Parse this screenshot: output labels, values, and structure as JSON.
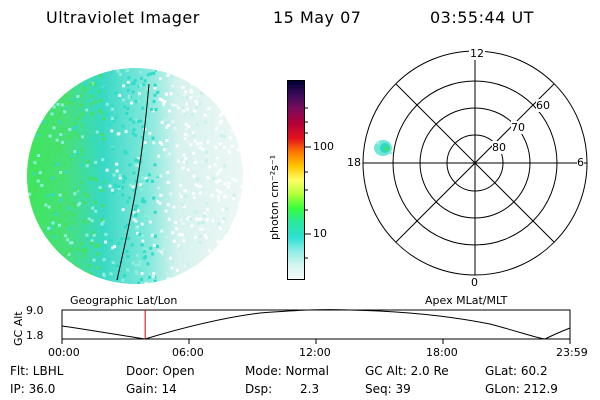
{
  "header": {
    "instrument": "Ultraviolet Imager",
    "date": "15 May 07",
    "time": "03:55:44 UT"
  },
  "colorbar": {
    "unit_label": "photon cm⁻²s⁻¹",
    "tick_100": "100",
    "tick_10": "10",
    "colors": [
      "#000033",
      "#3b0a5a",
      "#7a0c5c",
      "#b0003a",
      "#e2121e",
      "#ff7a00",
      "#ffc400",
      "#ffff66",
      "#b6ff3a",
      "#3aff3a",
      "#29e89b",
      "#2de0d2",
      "#8feee6",
      "#d6f5f0",
      "#f2fbfa"
    ]
  },
  "polar": {
    "mlt_top": "12",
    "mlt_bottom": "0",
    "mlt_left": "18",
    "mlt_right": "6",
    "lat_60": "60",
    "lat_70": "70",
    "lat_80": "80"
  },
  "timeline": {
    "left_label": "Geographic Lat/Lon",
    "right_label": "Apex MLat/MLT",
    "axis_title": "GC Alt",
    "y_top": "9.0",
    "y_bottom": "1.8",
    "ticks": [
      "00:00",
      "06:00",
      "12:00",
      "18:00",
      "23:59"
    ],
    "current_time_fraction": 0.1637
  },
  "info": {
    "filter": "Flt: LBHL",
    "door": "Door: Open",
    "mode": "Mode:  Normal",
    "gc_alt": "GC Alt: 2.0 Re",
    "glat": "GLat:  60.2",
    "ip": "IP: 36.0",
    "gain": "Gain: 14",
    "dsp_label": "Dsp:",
    "dsp_value": "2.3",
    "seq": "Seq: 39",
    "glon": "GLon: 212.9"
  }
}
